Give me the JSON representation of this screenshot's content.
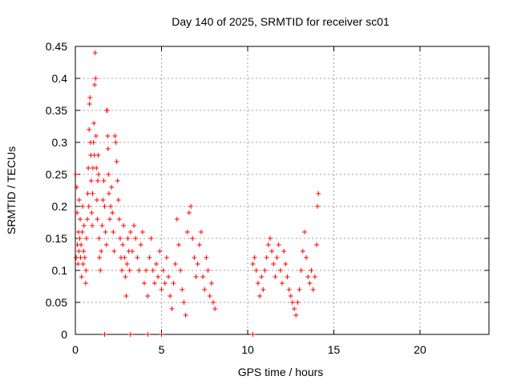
{
  "chart_data": {
    "type": "scatter",
    "title": "Day 140 of 2025, SRMTID for receiver sc01",
    "xlabel": "GPS time / hours",
    "ylabel": "SRMTID / TECUs",
    "xlim": [
      0,
      24
    ],
    "ylim": [
      0,
      0.45
    ],
    "xticks": [
      0,
      5,
      10,
      15,
      20
    ],
    "xtick_labels": [
      "0",
      "5",
      "10",
      "15",
      "20"
    ],
    "yticks": [
      0,
      0.05,
      0.1,
      0.15,
      0.2,
      0.25,
      0.3,
      0.35,
      0.4,
      0.45
    ],
    "ytick_labels": [
      "0",
      "0.05",
      "0.1",
      "0.15",
      "0.2",
      "0.25",
      "0.3",
      "0.35",
      "0.4",
      "0.45"
    ],
    "grid": true,
    "marker": "+",
    "color": "#ff0000",
    "series": [
      {
        "name": "sc01",
        "points": [
          [
            0.02,
            0.25
          ],
          [
            0.05,
            0.12
          ],
          [
            0.08,
            0.23
          ],
          [
            0.1,
            0.19
          ],
          [
            0.12,
            0.14
          ],
          [
            0.15,
            0.11
          ],
          [
            0.18,
            0.16
          ],
          [
            0.2,
            0.13
          ],
          [
            0.22,
            0.21
          ],
          [
            0.25,
            0.15
          ],
          [
            0.28,
            0.18
          ],
          [
            0.3,
            0.12
          ],
          [
            0.33,
            0.14
          ],
          [
            0.36,
            0.09
          ],
          [
            0.4,
            0.16
          ],
          [
            0.42,
            0.2
          ],
          [
            0.45,
            0.11
          ],
          [
            0.48,
            0.13
          ],
          [
            0.5,
            0.17
          ],
          [
            0.55,
            0.12
          ],
          [
            0.6,
            0.08
          ],
          [
            0.62,
            0.1
          ],
          [
            0.65,
            0.15
          ],
          [
            0.7,
            0.18
          ],
          [
            0.72,
            0.22
          ],
          [
            0.75,
            0.26
          ],
          [
            0.78,
            0.2
          ],
          [
            0.8,
            0.32
          ],
          [
            0.82,
            0.36
          ],
          [
            0.85,
            0.37
          ],
          [
            0.88,
            0.3
          ],
          [
            0.9,
            0.28
          ],
          [
            0.92,
            0.24
          ],
          [
            0.95,
            0.19
          ],
          [
            0.98,
            0.17
          ],
          [
            1.0,
            0.22
          ],
          [
            1.02,
            0.26
          ],
          [
            1.05,
            0.3
          ],
          [
            1.08,
            0.33
          ],
          [
            1.1,
            0.28
          ],
          [
            1.12,
            0.39
          ],
          [
            1.15,
            0.44
          ],
          [
            1.18,
            0.4
          ],
          [
            1.2,
            0.31
          ],
          [
            1.22,
            0.26
          ],
          [
            1.25,
            0.21
          ],
          [
            1.28,
            0.18
          ],
          [
            1.3,
            0.24
          ],
          [
            1.32,
            0.28
          ],
          [
            1.35,
            0.25
          ],
          [
            1.38,
            0.15
          ],
          [
            1.4,
            0.12
          ],
          [
            1.45,
            0.1
          ],
          [
            1.5,
            0.13
          ],
          [
            1.55,
            0.17
          ],
          [
            1.6,
            0.21
          ],
          [
            1.65,
            0.24
          ],
          [
            1.7,
            0.2
          ],
          [
            1.75,
            0.16
          ],
          [
            1.8,
            0.14
          ],
          [
            1.82,
            0.35
          ],
          [
            1.85,
            0.35
          ],
          [
            1.88,
            0.31
          ],
          [
            1.9,
            0.29
          ],
          [
            1.92,
            0.25
          ],
          [
            1.95,
            0.22
          ],
          [
            2.0,
            0.18
          ],
          [
            2.05,
            0.2
          ],
          [
            2.1,
            0.23
          ],
          [
            2.15,
            0.19
          ],
          [
            2.2,
            0.16
          ],
          [
            2.25,
            0.13
          ],
          [
            2.3,
            0.31
          ],
          [
            2.35,
            0.3
          ],
          [
            2.4,
            0.27
          ],
          [
            2.45,
            0.24
          ],
          [
            2.5,
            0.21
          ],
          [
            2.55,
            0.18
          ],
          [
            2.6,
            0.15
          ],
          [
            2.65,
            0.12
          ],
          [
            2.7,
            0.1
          ],
          [
            2.75,
            0.14
          ],
          [
            2.8,
            0.17
          ],
          [
            2.85,
            0.12
          ],
          [
            2.9,
            0.09
          ],
          [
            2.95,
            0.06
          ],
          [
            3.0,
            0.11
          ],
          [
            3.05,
            0.15
          ],
          [
            3.1,
            0.13
          ],
          [
            3.15,
            0.1
          ],
          [
            3.2,
            0.16
          ],
          [
            3.3,
            0.13
          ],
          [
            3.4,
            0.17
          ],
          [
            3.5,
            0.15
          ],
          [
            3.6,
            0.12
          ],
          [
            3.7,
            0.1
          ],
          [
            3.8,
            0.14
          ],
          [
            3.9,
            0.16
          ],
          [
            4.0,
            0.08
          ],
          [
            4.1,
            0.1
          ],
          [
            4.2,
            0.06
          ],
          [
            4.3,
            0.12
          ],
          [
            4.4,
            0.15
          ],
          [
            4.5,
            0.1
          ],
          [
            4.6,
            0.08
          ],
          [
            4.7,
            0.11
          ],
          [
            4.8,
            0.09
          ],
          [
            4.9,
            0.13
          ],
          [
            5.0,
            0.07
          ],
          [
            5.1,
            0.1
          ],
          [
            5.2,
            0.08
          ],
          [
            5.3,
            0.12
          ],
          [
            5.4,
            0.09
          ],
          [
            5.5,
            0.06
          ],
          [
            5.6,
            0.04
          ],
          [
            5.7,
            0.08
          ],
          [
            5.8,
            0.11
          ],
          [
            5.9,
            0.18
          ],
          [
            6.0,
            0.14
          ],
          [
            6.1,
            0.1
          ],
          [
            6.2,
            0.07
          ],
          [
            6.3,
            0.05
          ],
          [
            6.4,
            0.03
          ],
          [
            6.5,
            0.16
          ],
          [
            6.6,
            0.19
          ],
          [
            6.7,
            0.2
          ],
          [
            6.8,
            0.15
          ],
          [
            6.9,
            0.12
          ],
          [
            7.0,
            0.09
          ],
          [
            7.1,
            0.11
          ],
          [
            7.2,
            0.14
          ],
          [
            7.3,
            0.16
          ],
          [
            7.4,
            0.09
          ],
          [
            7.5,
            0.07
          ],
          [
            7.6,
            0.12
          ],
          [
            7.7,
            0.1
          ],
          [
            7.8,
            0.06
          ],
          [
            7.9,
            0.08
          ],
          [
            8.0,
            0.05
          ],
          [
            8.1,
            0.04
          ],
          [
            10.3,
            0.11
          ],
          [
            10.4,
            0.12
          ],
          [
            10.5,
            0.1
          ],
          [
            10.6,
            0.08
          ],
          [
            10.7,
            0.06
          ],
          [
            10.8,
            0.09
          ],
          [
            10.9,
            0.07
          ],
          [
            11.0,
            0.1
          ],
          [
            11.1,
            0.12
          ],
          [
            11.2,
            0.14
          ],
          [
            11.3,
            0.15
          ],
          [
            11.4,
            0.13
          ],
          [
            11.5,
            0.11
          ],
          [
            11.6,
            0.09
          ],
          [
            11.7,
            0.12
          ],
          [
            11.8,
            0.14
          ],
          [
            11.9,
            0.1
          ],
          [
            12.0,
            0.08
          ],
          [
            12.1,
            0.13
          ],
          [
            12.2,
            0.11
          ],
          [
            12.3,
            0.09
          ],
          [
            12.4,
            0.07
          ],
          [
            12.5,
            0.06
          ],
          [
            12.6,
            0.05
          ],
          [
            12.7,
            0.04
          ],
          [
            12.8,
            0.03
          ],
          [
            12.9,
            0.05
          ],
          [
            13.0,
            0.07
          ],
          [
            13.1,
            0.1
          ],
          [
            13.2,
            0.13
          ],
          [
            13.3,
            0.16
          ],
          [
            13.4,
            0.12
          ],
          [
            13.5,
            0.09
          ],
          [
            13.6,
            0.08
          ],
          [
            13.7,
            0.1
          ],
          [
            13.8,
            0.07
          ],
          [
            13.9,
            0.09
          ],
          [
            14.0,
            0.14
          ],
          [
            14.05,
            0.2
          ],
          [
            14.1,
            0.22
          ]
        ]
      }
    ],
    "zero_markers": [
      1.7,
      3.2,
      4.2,
      5.0,
      10.3
    ]
  }
}
